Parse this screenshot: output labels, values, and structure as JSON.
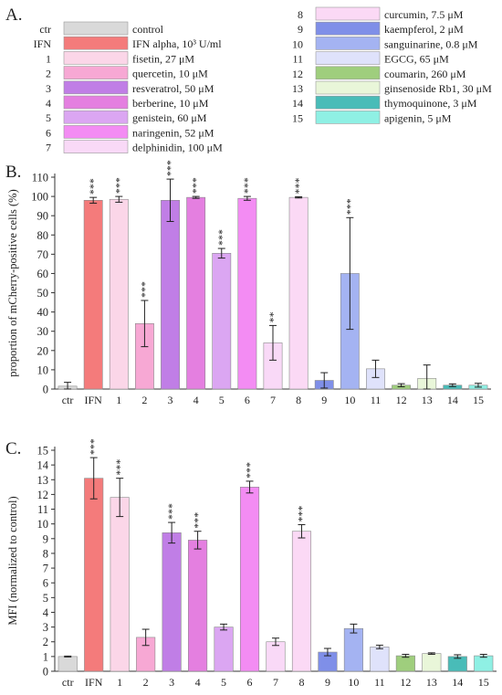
{
  "panel_labels": {
    "a": "A.",
    "b": "B.",
    "c": "C."
  },
  "legend": {
    "items": [
      {
        "code": "ctr",
        "label": "control",
        "color": "#d9d9d9"
      },
      {
        "code": "IFN",
        "label": "IFN alpha, 10³ U/ml",
        "color": "#f47b7b"
      },
      {
        "code": "1",
        "label": "fisetin, 27 μM",
        "color": "#fbd6e8"
      },
      {
        "code": "2",
        "label": "quercetin, 10 μM",
        "color": "#f7a8d4"
      },
      {
        "code": "3",
        "label": "resveratrol, 50 μM",
        "color": "#c07ee6"
      },
      {
        "code": "4",
        "label": "berberine, 10 μM",
        "color": "#e47fe0"
      },
      {
        "code": "5",
        "label": "genistein, 60 μM",
        "color": "#dba6f2"
      },
      {
        "code": "6",
        "label": "naringenin, 52 μM",
        "color": "#f38cf3"
      },
      {
        "code": "7",
        "label": "delphinidin, 100 μM",
        "color": "#f9d9f7"
      },
      {
        "code": "8",
        "label": "curcumin, 7.5 μM",
        "color": "#fbd9f5"
      },
      {
        "code": "9",
        "label": "kaempferol, 2 μM",
        "color": "#7f8fe8"
      },
      {
        "code": "10",
        "label": "sanguinarine, 0.8 μM",
        "color": "#a4b3f2"
      },
      {
        "code": "11",
        "label": "EGCG, 65 μM",
        "color": "#dfe2fb"
      },
      {
        "code": "12",
        "label": "coumarin, 260 μM",
        "color": "#9fce7d"
      },
      {
        "code": "13",
        "label": "ginsenoside Rb1, 30 μM",
        "color": "#e9f6d9"
      },
      {
        "code": "14",
        "label": "thymoquinone, 3 μM",
        "color": "#49bcb8"
      },
      {
        "code": "15",
        "label": "apigenin, 5 μM",
        "color": "#8ff0e4"
      }
    ]
  },
  "chart_data": [
    {
      "type": "bar",
      "panel": "B.",
      "ylabel": "proportion of mCherry-positive cells (%)",
      "ylim": [
        0,
        110
      ],
      "yticks": [
        0,
        10,
        20,
        30,
        40,
        50,
        60,
        70,
        80,
        90,
        100,
        110
      ],
      "categories": [
        "ctr",
        "IFN",
        "1",
        "2",
        "3",
        "4",
        "5",
        "6",
        "7",
        "8",
        "9",
        "10",
        "11",
        "12",
        "13",
        "14",
        "15"
      ],
      "values": [
        1.5,
        98,
        98.5,
        34,
        98,
        99.5,
        70.5,
        99,
        24,
        99.5,
        4.5,
        60,
        10.5,
        2,
        5.5,
        2,
        2
      ],
      "errors": [
        2,
        1.5,
        1.5,
        12,
        11,
        0.5,
        2.5,
        1,
        9,
        0.3,
        4,
        29,
        4.5,
        0.8,
        7,
        0.7,
        1
      ],
      "significance": [
        "",
        "***",
        "***",
        "***",
        "***",
        "***",
        "***",
        "***",
        "**",
        "***",
        "",
        "***",
        "",
        "",
        "",
        "",
        ""
      ]
    },
    {
      "type": "bar",
      "panel": "C.",
      "ylabel": "MFI (normalized to control)",
      "ylim": [
        0,
        15
      ],
      "yticks": [
        0,
        1,
        2,
        3,
        4,
        5,
        6,
        7,
        8,
        9,
        10,
        11,
        12,
        13,
        14,
        15
      ],
      "categories": [
        "ctr",
        "IFN",
        "1",
        "2",
        "3",
        "4",
        "5",
        "6",
        "7",
        "8",
        "9",
        "10",
        "11",
        "12",
        "13",
        "14",
        "15"
      ],
      "values": [
        1,
        13.1,
        11.8,
        2.3,
        9.4,
        8.9,
        3.0,
        12.5,
        2.0,
        9.5,
        1.3,
        2.9,
        1.65,
        1.05,
        1.2,
        1.0,
        1.05
      ],
      "errors": [
        0.03,
        1.4,
        1.3,
        0.55,
        0.7,
        0.6,
        0.2,
        0.4,
        0.25,
        0.45,
        0.25,
        0.3,
        0.12,
        0.1,
        0.05,
        0.12,
        0.1
      ],
      "significance": [
        "",
        "***",
        "***",
        "",
        "***",
        "***",
        "",
        "***",
        "",
        "***",
        "",
        "",
        "",
        "",
        "",
        "",
        ""
      ]
    }
  ]
}
